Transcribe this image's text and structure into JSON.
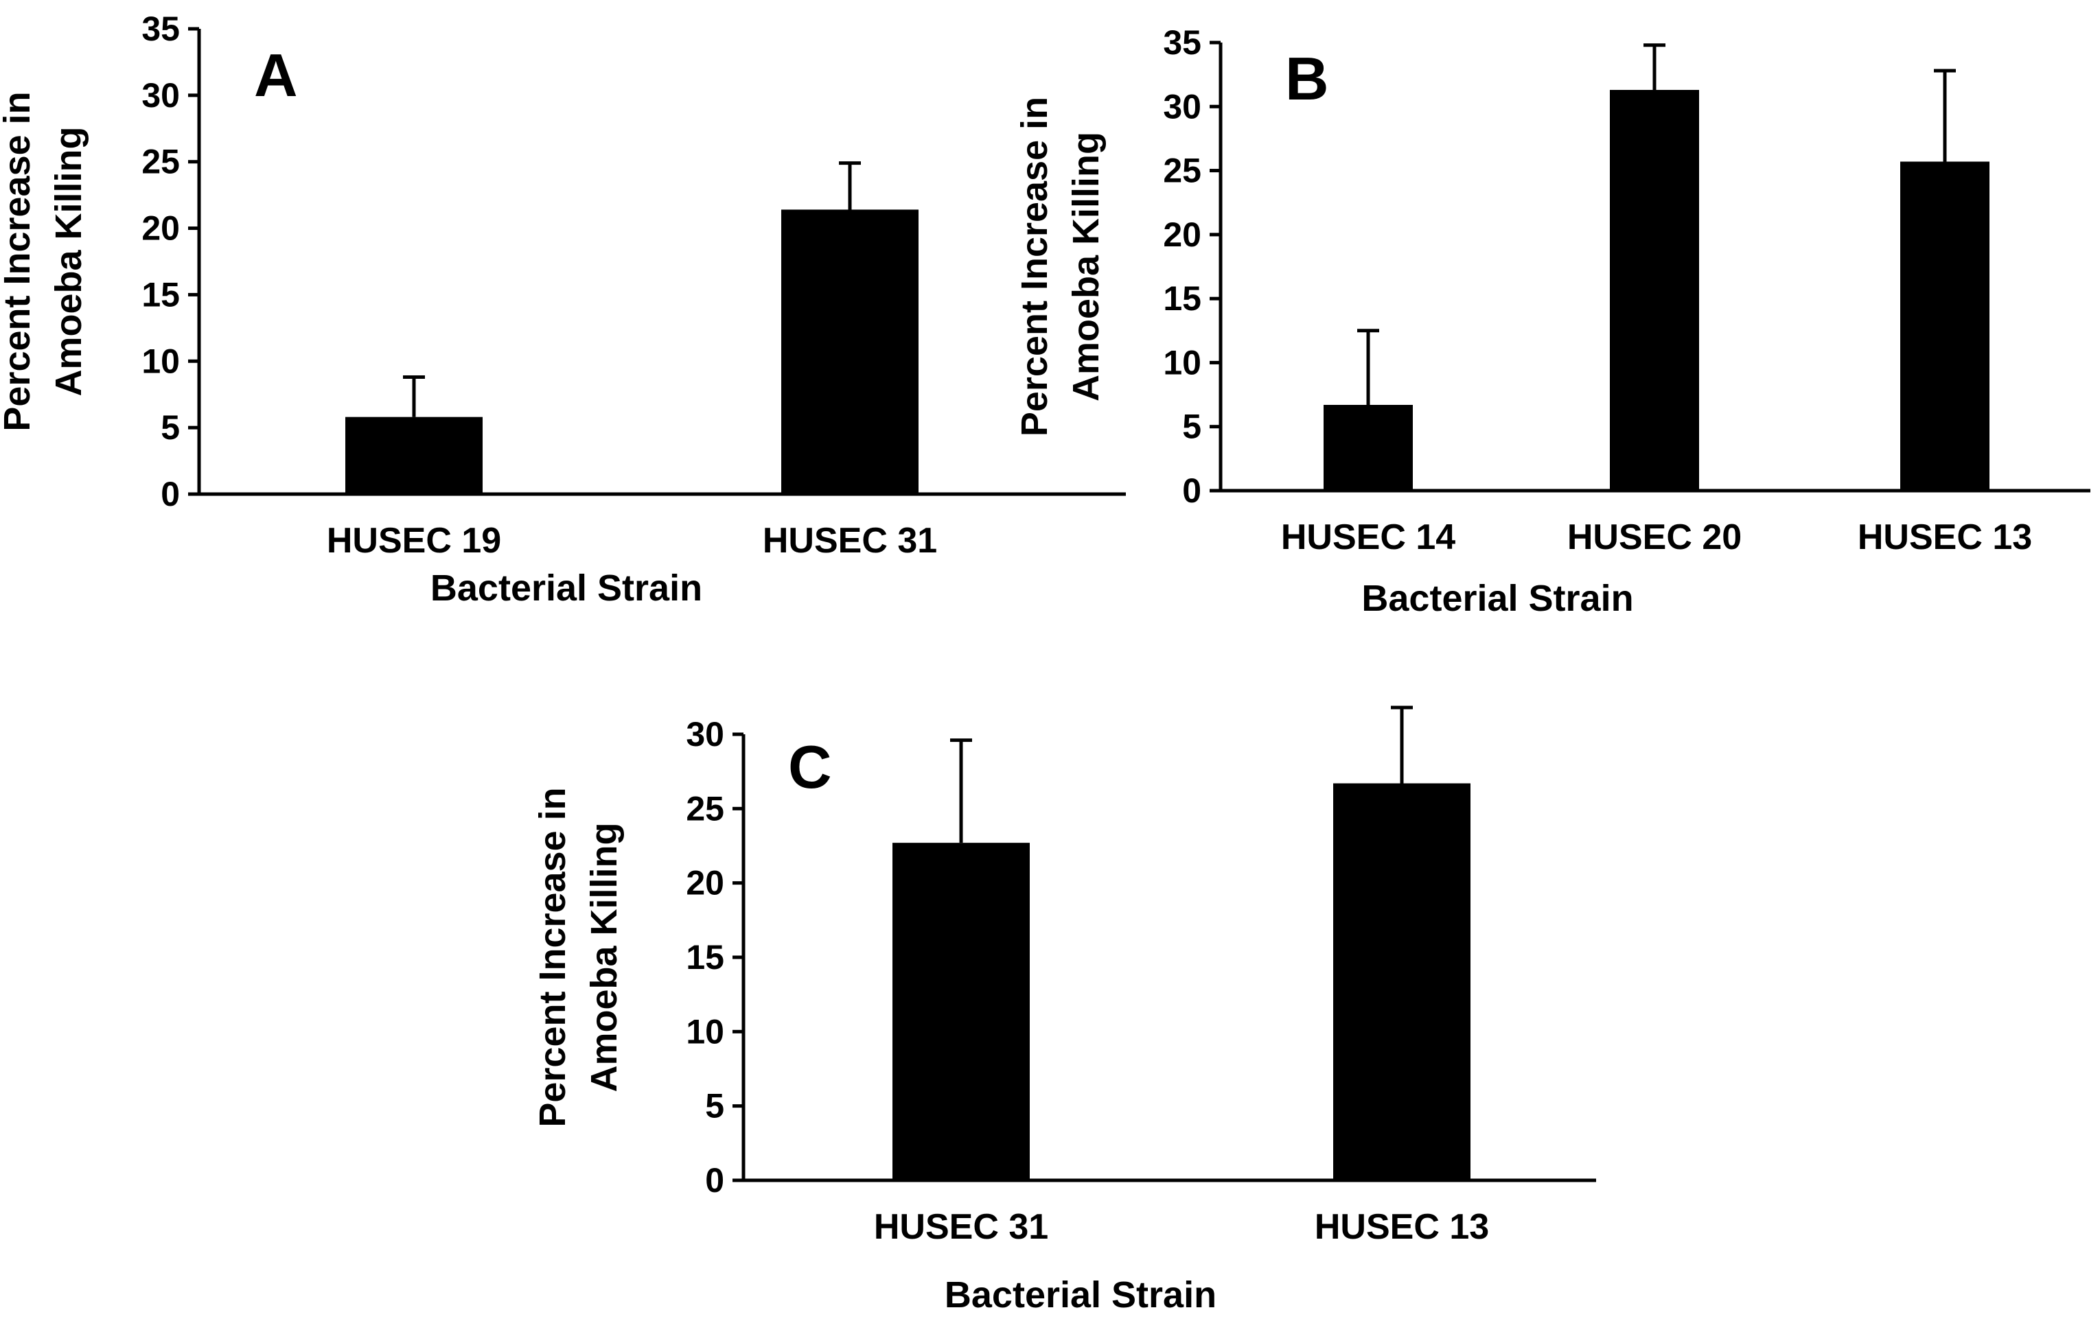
{
  "chart_data": [
    {
      "type": "bar",
      "panel_label": "A",
      "categories": [
        "HUSEC 19",
        "HUSEC 31"
      ],
      "values": [
        5.8,
        21.4
      ],
      "error": [
        3.0,
        3.5
      ],
      "xlabel": "Bacterial Strain",
      "ylabel_lines": [
        "Percent Increase in",
        "Amoeba Killing"
      ],
      "ylim": [
        0,
        35
      ],
      "yticks": [
        0,
        5,
        10,
        15,
        20,
        25,
        30,
        35
      ],
      "grid": false,
      "colors": {
        "bar": "#000000",
        "axis": "#000000"
      }
    },
    {
      "type": "bar",
      "panel_label": "B",
      "categories": [
        "HUSEC 14",
        "HUSEC 20",
        "HUSEC 13"
      ],
      "values": [
        6.7,
        31.3,
        25.7
      ],
      "error": [
        5.8,
        3.5,
        7.1
      ],
      "xlabel": "Bacterial Strain",
      "ylabel_lines": [
        "Percent Increase in",
        "Amoeba Killing"
      ],
      "ylim": [
        0,
        35
      ],
      "yticks": [
        0,
        5,
        10,
        15,
        20,
        25,
        30,
        35
      ],
      "grid": false,
      "colors": {
        "bar": "#000000",
        "axis": "#000000"
      }
    },
    {
      "type": "bar",
      "panel_label": "C",
      "categories": [
        "HUSEC 31",
        "HUSEC 13"
      ],
      "values": [
        22.7,
        26.7
      ],
      "error": [
        6.9,
        5.1
      ],
      "xlabel": "Bacterial Strain",
      "ylabel_lines": [
        "Percent Increase in",
        "Amoeba Killing"
      ],
      "ylim": [
        0,
        34
      ],
      "yticks": [
        0,
        5,
        10,
        15,
        20,
        25,
        30
      ],
      "grid": false,
      "colors": {
        "bar": "#000000",
        "axis": "#000000"
      }
    }
  ]
}
